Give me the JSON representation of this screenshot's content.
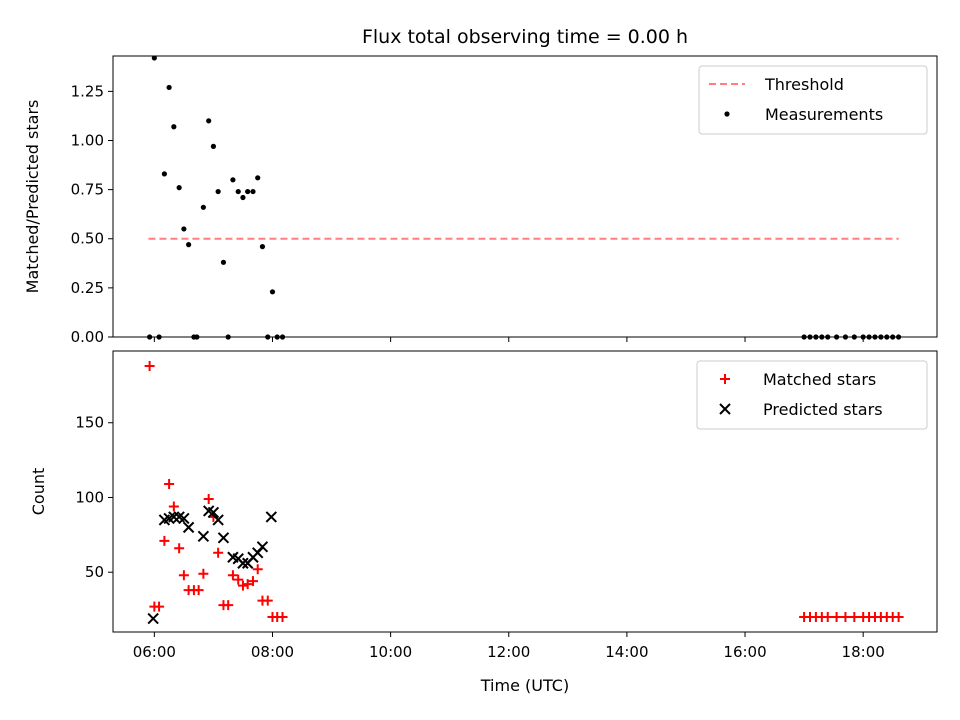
{
  "chart_data": {
    "title": "Flux total observing time = 0.00 h",
    "xlabel": "Time (UTC)",
    "x_unit": "hour_of_day_utc",
    "xlim": [
      5.3,
      19.25
    ],
    "xticks": [
      {
        "value": 6,
        "label": "06:00"
      },
      {
        "value": 8,
        "label": "08:00"
      },
      {
        "value": 10,
        "label": "10:00"
      },
      {
        "value": 12,
        "label": "12:00"
      },
      {
        "value": 14,
        "label": "14:00"
      },
      {
        "value": 16,
        "label": "16:00"
      },
      {
        "value": 18,
        "label": "18:00"
      }
    ],
    "panels": [
      {
        "type": "scatter",
        "ylabel": "Matched/Predicted stars",
        "ylim": [
          0,
          1.43
        ],
        "yticks": [
          "0.00",
          "0.25",
          "0.50",
          "0.75",
          "1.00",
          "1.25"
        ],
        "legend_position": "top-right",
        "threshold": {
          "name": "Threshold",
          "value": 0.5,
          "x_range": [
            5.9,
            18.6
          ],
          "color": "#ff7f7f"
        },
        "series": [
          {
            "name": "Measurements",
            "color": "#000000",
            "marker": "dot",
            "points": [
              [
                5.92,
                0.0
              ],
              [
                6.0,
                1.42
              ],
              [
                6.08,
                0.0
              ],
              [
                6.17,
                0.83
              ],
              [
                6.25,
                1.27
              ],
              [
                6.33,
                1.07
              ],
              [
                6.42,
                0.76
              ],
              [
                6.5,
                0.55
              ],
              [
                6.58,
                0.47
              ],
              [
                6.67,
                0.0
              ],
              [
                6.72,
                0.0
              ],
              [
                6.83,
                0.66
              ],
              [
                6.92,
                1.1
              ],
              [
                7.0,
                0.97
              ],
              [
                7.08,
                0.74
              ],
              [
                7.17,
                0.38
              ],
              [
                7.25,
                0.0
              ],
              [
                7.33,
                0.8
              ],
              [
                7.42,
                0.74
              ],
              [
                7.5,
                0.71
              ],
              [
                7.58,
                0.74
              ],
              [
                7.67,
                0.74
              ],
              [
                7.75,
                0.81
              ],
              [
                7.83,
                0.46
              ],
              [
                7.92,
                0.0
              ],
              [
                8.0,
                0.23
              ],
              [
                8.08,
                0.0
              ],
              [
                8.17,
                0.0
              ],
              [
                17.0,
                0.0
              ],
              [
                17.1,
                0.0
              ],
              [
                17.2,
                0.0
              ],
              [
                17.3,
                0.0
              ],
              [
                17.4,
                0.0
              ],
              [
                17.55,
                0.0
              ],
              [
                17.7,
                0.0
              ],
              [
                17.85,
                0.0
              ],
              [
                18.0,
                0.0
              ],
              [
                18.1,
                0.0
              ],
              [
                18.2,
                0.0
              ],
              [
                18.3,
                0.0
              ],
              [
                18.4,
                0.0
              ],
              [
                18.5,
                0.0
              ],
              [
                18.6,
                0.0
              ]
            ]
          }
        ]
      },
      {
        "type": "scatter",
        "ylabel": "Count",
        "ylim": [
          10,
          198
        ],
        "yticks": [
          "50",
          "100",
          "150"
        ],
        "legend_position": "top-right",
        "series": [
          {
            "name": "Matched stars",
            "color": "#ff0000",
            "marker": "plus",
            "points": [
              [
                5.92,
                188
              ],
              [
                6.0,
                27
              ],
              [
                6.08,
                27
              ],
              [
                6.17,
                71
              ],
              [
                6.25,
                109
              ],
              [
                6.33,
                94
              ],
              [
                6.42,
                66
              ],
              [
                6.5,
                48
              ],
              [
                6.58,
                38
              ],
              [
                6.67,
                38
              ],
              [
                6.75,
                38
              ],
              [
                6.83,
                49
              ],
              [
                6.92,
                99
              ],
              [
                7.0,
                87
              ],
              [
                7.08,
                63
              ],
              [
                7.17,
                28
              ],
              [
                7.25,
                28
              ],
              [
                7.33,
                48
              ],
              [
                7.42,
                45
              ],
              [
                7.5,
                41
              ],
              [
                7.58,
                42
              ],
              [
                7.67,
                44
              ],
              [
                7.75,
                52
              ],
              [
                7.83,
                31
              ],
              [
                7.92,
                31
              ],
              [
                8.0,
                20
              ],
              [
                8.08,
                20
              ],
              [
                8.17,
                20
              ],
              [
                17.0,
                20
              ],
              [
                17.1,
                20
              ],
              [
                17.2,
                20
              ],
              [
                17.3,
                20
              ],
              [
                17.4,
                20
              ],
              [
                17.55,
                20
              ],
              [
                17.7,
                20
              ],
              [
                17.85,
                20
              ],
              [
                18.0,
                20
              ],
              [
                18.1,
                20
              ],
              [
                18.2,
                20
              ],
              [
                18.3,
                20
              ],
              [
                18.4,
                20
              ],
              [
                18.5,
                20
              ],
              [
                18.6,
                20
              ]
            ]
          },
          {
            "name": "Predicted stars",
            "color": "#000000",
            "marker": "x",
            "points": [
              [
                5.98,
                19
              ],
              [
                6.17,
                85
              ],
              [
                6.25,
                86
              ],
              [
                6.33,
                87
              ],
              [
                6.42,
                87
              ],
              [
                6.5,
                86
              ],
              [
                6.58,
                80
              ],
              [
                6.83,
                74
              ],
              [
                6.92,
                91
              ],
              [
                7.0,
                90
              ],
              [
                7.08,
                85
              ],
              [
                7.17,
                73
              ],
              [
                7.33,
                60
              ],
              [
                7.42,
                59
              ],
              [
                7.5,
                56
              ],
              [
                7.58,
                56
              ],
              [
                7.67,
                60
              ],
              [
                7.75,
                63
              ],
              [
                7.83,
                67
              ],
              [
                7.98,
                87
              ]
            ]
          }
        ]
      }
    ]
  }
}
